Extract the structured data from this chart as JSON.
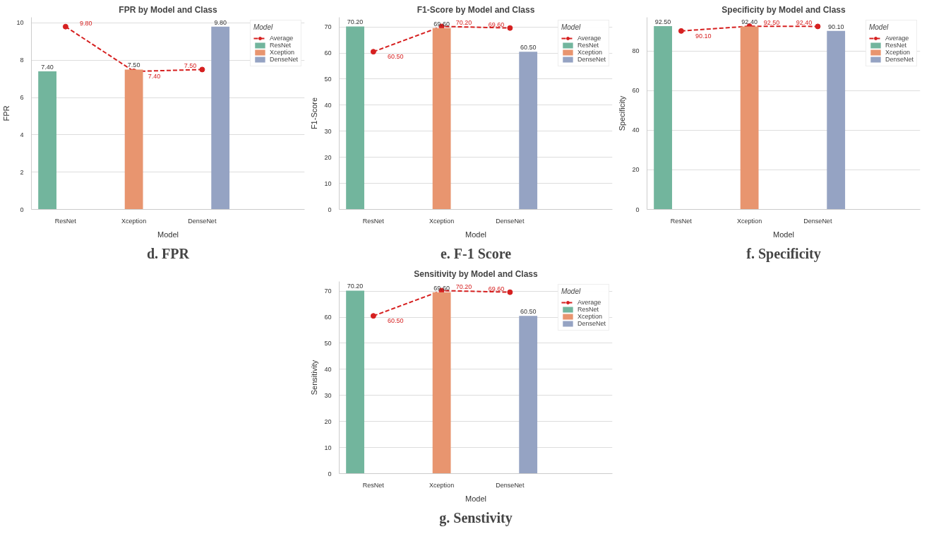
{
  "chart_data": [
    {
      "type": "bar",
      "title": "FPR by Model and Class",
      "xlabel": "Model",
      "ylabel": "FPR",
      "legend_title": "Model",
      "categories": [
        "ResNet",
        "Xception",
        "DenseNet"
      ],
      "series": [
        {
          "name": "Average",
          "type": "line",
          "color": "#d62020",
          "values": [
            9.8,
            7.4,
            7.5
          ],
          "value_labels": [
            "9.80",
            "7.40",
            "7.50"
          ],
          "marker": "circle",
          "line_style": "dashed"
        },
        {
          "name": "ResNet",
          "color": "#72b59d",
          "values": [
            7.4,
            null,
            null
          ],
          "value_labels": [
            "7.40",
            null,
            null
          ]
        },
        {
          "name": "Xception",
          "color": "#e8956f",
          "values": [
            null,
            7.5,
            null
          ],
          "value_labels": [
            null,
            "7.50",
            null
          ]
        },
        {
          "name": "DenseNet",
          "color": "#95a3c3",
          "values": [
            null,
            null,
            9.8
          ],
          "value_labels": [
            null,
            null,
            "9.80"
          ]
        }
      ],
      "ylim": [
        0,
        10.3
      ],
      "yticks": [
        0,
        2,
        4,
        6,
        8,
        10
      ],
      "grid": "y",
      "legend": "top right",
      "annotations": [
        "d. FPR"
      ]
    },
    {
      "type": "bar",
      "title": "F1-Score by Model and Class",
      "xlabel": "Model",
      "ylabel": "F1-Score",
      "legend_title": "Model",
      "categories": [
        "ResNet",
        "Xception",
        "DenseNet"
      ],
      "series": [
        {
          "name": "Average",
          "type": "line",
          "color": "#d62020",
          "values": [
            60.5,
            70.2,
            69.6
          ],
          "value_labels": [
            "60.50",
            "70.20",
            "69.60"
          ],
          "marker": "circle",
          "line_style": "dashed"
        },
        {
          "name": "ResNet",
          "color": "#72b59d",
          "values": [
            70.2,
            null,
            null
          ],
          "value_labels": [
            "70.20",
            null,
            null
          ]
        },
        {
          "name": "Xception",
          "color": "#e8956f",
          "values": [
            null,
            69.6,
            null
          ],
          "value_labels": [
            null,
            "69.60",
            null
          ]
        },
        {
          "name": "DenseNet",
          "color": "#95a3c3",
          "values": [
            null,
            null,
            60.5
          ],
          "value_labels": [
            null,
            null,
            "60.50"
          ]
        }
      ],
      "ylim": [
        0,
        73.7
      ],
      "yticks": [
        0,
        10,
        20,
        30,
        40,
        50,
        60,
        70
      ],
      "grid": "y",
      "legend": "top right",
      "annotations": [
        "e. F-1 Score"
      ]
    },
    {
      "type": "bar",
      "title": "Specificity by Model and Class",
      "xlabel": "Model",
      "ylabel": "Specificity",
      "legend_title": "Model",
      "categories": [
        "ResNet",
        "Xception",
        "DenseNet"
      ],
      "series": [
        {
          "name": "Average",
          "type": "line",
          "color": "#d62020",
          "values": [
            90.1,
            92.5,
            92.4
          ],
          "value_labels": [
            "90.10",
            "92.50",
            "92.40"
          ],
          "marker": "circle",
          "line_style": "dashed"
        },
        {
          "name": "ResNet",
          "color": "#72b59d",
          "values": [
            92.5,
            null,
            null
          ],
          "value_labels": [
            "92.50",
            null,
            null
          ]
        },
        {
          "name": "Xception",
          "color": "#e8956f",
          "values": [
            null,
            92.4,
            null
          ],
          "value_labels": [
            null,
            "92.40",
            null
          ]
        },
        {
          "name": "DenseNet",
          "color": "#95a3c3",
          "values": [
            null,
            null,
            90.1
          ],
          "value_labels": [
            null,
            null,
            "90.10"
          ]
        }
      ],
      "ylim": [
        0,
        97
      ],
      "yticks": [
        0,
        20,
        40,
        60,
        80
      ],
      "grid": "y",
      "legend": "top right",
      "annotations": [
        "f. Specificity"
      ]
    },
    {
      "type": "bar",
      "title": "Sensitivity by Model and Class",
      "xlabel": "Model",
      "ylabel": "Sensitivity",
      "legend_title": "Model",
      "categories": [
        "ResNet",
        "Xception",
        "DenseNet"
      ],
      "series": [
        {
          "name": "Average",
          "type": "line",
          "color": "#d62020",
          "values": [
            60.5,
            70.2,
            69.6
          ],
          "value_labels": [
            "60.50",
            "70.20",
            "69.60"
          ],
          "marker": "circle",
          "line_style": "dashed"
        },
        {
          "name": "ResNet",
          "color": "#72b59d",
          "values": [
            70.2,
            null,
            null
          ],
          "value_labels": [
            "70.20",
            null,
            null
          ]
        },
        {
          "name": "Xception",
          "color": "#e8956f",
          "values": [
            null,
            69.6,
            null
          ],
          "value_labels": [
            null,
            "69.60",
            null
          ]
        },
        {
          "name": "DenseNet",
          "color": "#95a3c3",
          "values": [
            null,
            null,
            60.5
          ],
          "value_labels": [
            null,
            null,
            "60.50"
          ]
        }
      ],
      "ylim": [
        0,
        73.7
      ],
      "yticks": [
        0,
        10,
        20,
        30,
        40,
        50,
        60,
        70
      ],
      "grid": "y",
      "legend": "top right",
      "annotations": [
        "g. Senstivity"
      ]
    }
  ]
}
